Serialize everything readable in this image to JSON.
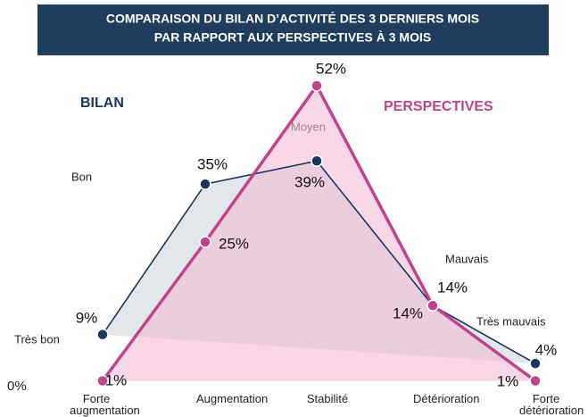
{
  "chart_data": {
    "type": "line",
    "title": [
      "COMPARAISON DU BILAN D’ACTIVITÉ DES 3 DERNIERS MOIS",
      "PAR RAPPORT AUX PERSPECTIVES À 3 MOIS"
    ],
    "categories": [
      "Forte augmentation",
      "Augmentation",
      "Stabilité",
      "Détérioration",
      "Forte détérioration"
    ],
    "series": [
      {
        "name": "BILAN",
        "color": "#17375e",
        "fill": "#dfe4e9",
        "values": [
          9,
          35,
          39,
          14,
          4
        ],
        "value_labels": [
          "9%",
          "35%",
          "39%",
          "14%",
          "4%"
        ]
      },
      {
        "name": "PERSPECTIVES",
        "color": "#c0448b",
        "fill": "#f3bcd5",
        "values": [
          1,
          25,
          52,
          14,
          1
        ],
        "value_labels": [
          "1%",
          "25%",
          "52%",
          "14%",
          "1%"
        ]
      }
    ],
    "annotations": [
      "Très bon",
      "Bon",
      "Moyen",
      "Mauvais",
      "Très mauvais"
    ],
    "ylim": [
      0,
      52
    ],
    "yticks": [
      {
        "value": 0,
        "label": "0%"
      }
    ]
  }
}
